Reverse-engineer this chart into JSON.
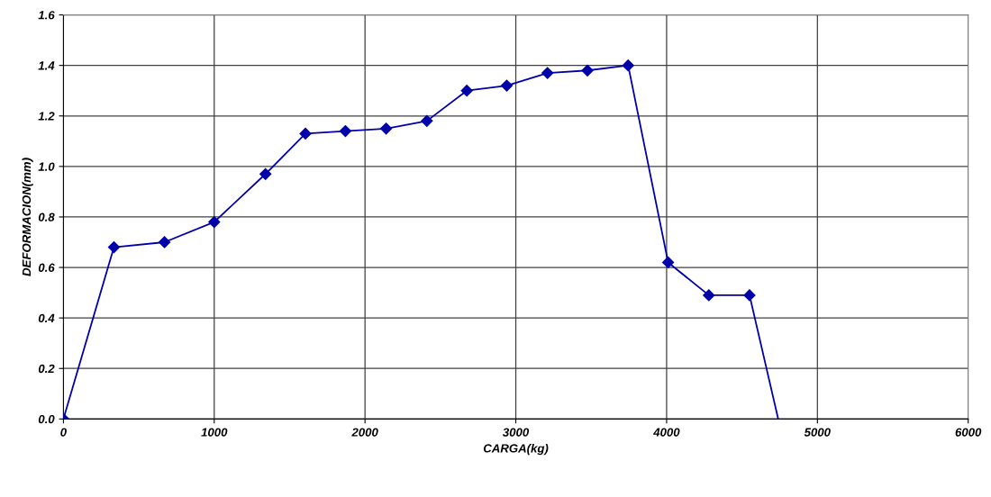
{
  "chart_data": {
    "type": "line",
    "xlabel": "CARGA(kg)",
    "ylabel": "DEFORMACION(mm)",
    "xlim": [
      0,
      6000
    ],
    "xticks": [
      0,
      1000,
      2000,
      3000,
      4000,
      5000,
      6000
    ],
    "ylim": [
      0,
      1.6
    ],
    "yticks": [
      {
        "value": 0,
        "label": "0.0"
      },
      {
        "value": 0.2,
        "label": "0.2"
      },
      {
        "value": 0.4,
        "label": "0.4"
      },
      {
        "value": 0.6,
        "label": "0.6"
      },
      {
        "value": 0.8,
        "label": "0.8"
      },
      {
        "value": 1.0,
        "label": "1.0"
      },
      {
        "value": 1.2,
        "label": "1.2"
      },
      {
        "value": 1.4,
        "label": "1.4"
      },
      {
        "value": 1.6,
        "label": "1.6"
      }
    ],
    "grid": true,
    "series": [
      {
        "color": "#0000aa",
        "marker": "diamond",
        "x": [
          0,
          335,
          670,
          1000,
          1340,
          1605,
          1870,
          2140,
          2410,
          2675,
          2940,
          3210,
          3475,
          3745,
          4010,
          4280,
          4550
        ],
        "values": [
          0,
          0.68,
          0.7,
          0.78,
          0.97,
          1.13,
          1.14,
          1.15,
          1.18,
          1.3,
          1.32,
          1.37,
          1.38,
          1.4,
          0.62,
          0.49,
          0.49
        ]
      },
      {
        "color": "#0000aa",
        "marker": "none",
        "x": [
          4550,
          4740
        ],
        "values": [
          0.49,
          0
        ]
      }
    ]
  }
}
